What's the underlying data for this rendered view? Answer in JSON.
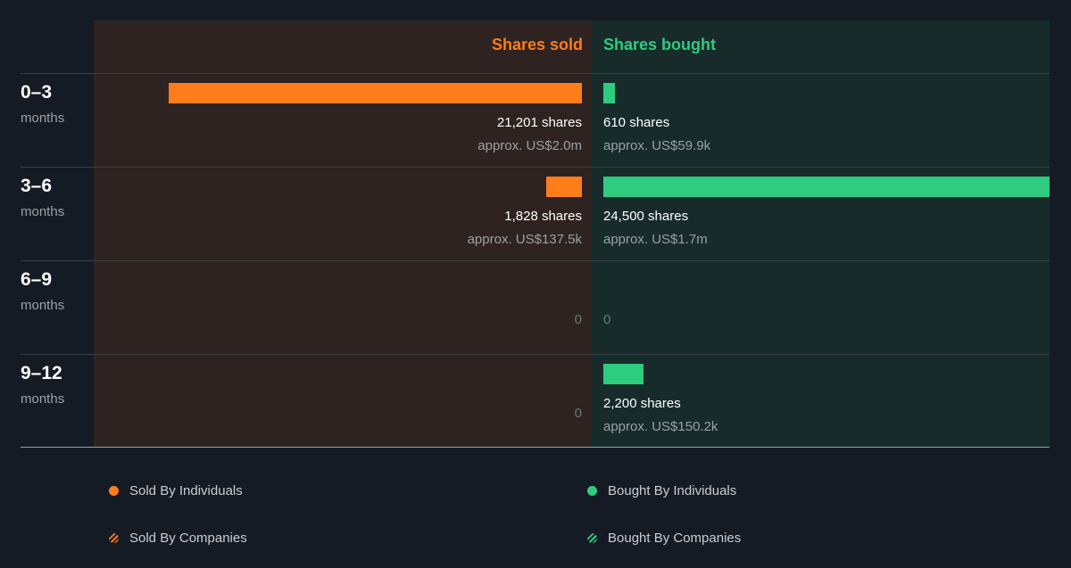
{
  "chart_data": {
    "type": "bar",
    "orientation": "horizontal-diverging",
    "column_headers": {
      "sold": "Shares sold",
      "bought": "Shares bought"
    },
    "categories": [
      {
        "range": "0–3",
        "unit": "months"
      },
      {
        "range": "3–6",
        "unit": "months"
      },
      {
        "range": "6–9",
        "unit": "months"
      },
      {
        "range": "9–12",
        "unit": "months"
      }
    ],
    "series": [
      {
        "name": "Shares sold",
        "values": [
          21201,
          1828,
          0,
          0
        ],
        "share_labels": [
          "21,201 shares",
          "1,828 shares",
          "0",
          "0"
        ],
        "value_labels": [
          "approx. US$2.0m",
          "approx. US$137.5k",
          "",
          ""
        ]
      },
      {
        "name": "Shares bought",
        "values": [
          610,
          24500,
          0,
          2200
        ],
        "share_labels": [
          "610 shares",
          "24,500 shares",
          "0",
          "2,200 shares"
        ],
        "value_labels": [
          "approx. US$59.9k",
          "approx. US$1.7m",
          "",
          "approx. US$150.2k"
        ]
      }
    ],
    "legend": {
      "placement": "bottom",
      "items": [
        "Sold By Individuals",
        "Bought By Individuals",
        "Sold By Companies",
        "Bought By Companies"
      ]
    },
    "colors": {
      "sold": "#ff7d1a",
      "bought": "#2ecc7f"
    }
  }
}
